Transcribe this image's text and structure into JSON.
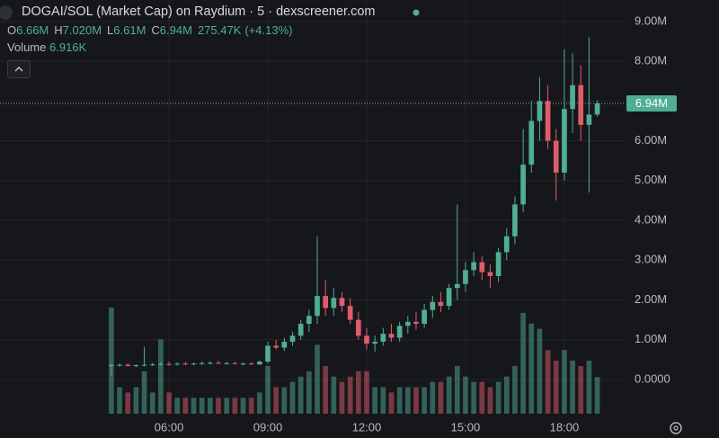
{
  "header": {
    "title": "DOGAI/SOL (Market Cap) on Raydium · 5 · dexscreener.com"
  },
  "chart_data": {
    "type": "candlestick",
    "x": [
      4.25,
      4.5,
      4.75,
      5,
      5.25,
      5.5,
      5.75,
      6,
      6.25,
      6.5,
      6.75,
      7,
      7.25,
      7.5,
      7.75,
      8,
      8.25,
      8.5,
      8.75,
      9,
      9.25,
      9.5,
      9.75,
      10,
      10.25,
      10.5,
      10.75,
      11,
      11.25,
      11.5,
      11.75,
      12,
      12.25,
      12.5,
      12.75,
      13,
      13.25,
      13.5,
      13.75,
      14,
      14.25,
      14.5,
      14.75,
      15,
      15.25,
      15.5,
      15.75,
      16,
      16.25,
      16.5,
      16.75,
      17,
      17.25,
      17.5,
      17.75,
      18,
      18.25,
      18.5,
      18.75,
      19
    ],
    "open": [
      0.35,
      0.36,
      0.37,
      0.34,
      0.36,
      0.37,
      0.38,
      0.39,
      0.38,
      0.4,
      0.39,
      0.4,
      0.41,
      0.42,
      0.4,
      0.41,
      0.39,
      0.4,
      0.38,
      0.45,
      0.85,
      0.8,
      0.95,
      1.1,
      1.4,
      1.6,
      2.1,
      1.8,
      2.05,
      1.85,
      1.5,
      1.1,
      0.9,
      0.95,
      1.15,
      1.05,
      1.35,
      1.45,
      1.4,
      1.75,
      1.95,
      1.85,
      2.3,
      2.4,
      2.75,
      2.95,
      2.7,
      2.6,
      3.2,
      3.6,
      4.4,
      5.4,
      6.5,
      7,
      6,
      5.2,
      6.8,
      7.4,
      6.4,
      6.66
    ],
    "high": [
      0.4,
      0.4,
      0.41,
      0.38,
      0.82,
      0.42,
      0.44,
      0.45,
      0.43,
      0.44,
      0.43,
      0.45,
      0.46,
      0.47,
      0.44,
      0.45,
      0.43,
      0.44,
      0.48,
      0.95,
      1,
      1.05,
      1.2,
      1.5,
      1.75,
      3.6,
      2.5,
      2.3,
      2.2,
      2.05,
      1.7,
      1.3,
      1.1,
      1.3,
      1.4,
      1.45,
      1.6,
      1.7,
      1.9,
      2.1,
      2.2,
      2.4,
      4.4,
      2.95,
      3.2,
      3.1,
      2.9,
      3.3,
      3.8,
      4.6,
      6.3,
      7,
      7.6,
      7.4,
      6.3,
      8.3,
      8.2,
      7.9,
      8.6,
      7.02
    ],
    "low": [
      0.1,
      0.32,
      0.33,
      0.31,
      0.33,
      0.34,
      0.35,
      0.35,
      0.35,
      0.36,
      0.36,
      0.37,
      0.38,
      0.39,
      0.37,
      0.38,
      0.36,
      0.37,
      0.36,
      0.4,
      0.75,
      0.72,
      0.85,
      1,
      1.2,
      1.4,
      1.6,
      1.6,
      1.7,
      1.4,
      1,
      0.75,
      0.7,
      0.85,
      0.95,
      0.95,
      1.15,
      1.25,
      1.3,
      1.55,
      1.7,
      1.75,
      2,
      2.2,
      2.6,
      2.5,
      2.3,
      2.45,
      3,
      3.4,
      4.2,
      5.2,
      6,
      5.8,
      4.5,
      5,
      6.2,
      6,
      4.7,
      6.61
    ],
    "close": [
      0.36,
      0.37,
      0.34,
      0.36,
      0.37,
      0.38,
      0.39,
      0.38,
      0.4,
      0.39,
      0.4,
      0.41,
      0.42,
      0.4,
      0.41,
      0.39,
      0.4,
      0.38,
      0.45,
      0.85,
      0.8,
      0.95,
      1.1,
      1.4,
      1.6,
      2.1,
      1.8,
      2.05,
      1.85,
      1.5,
      1.1,
      0.9,
      0.95,
      1.15,
      1.05,
      1.35,
      1.45,
      1.4,
      1.75,
      1.95,
      1.85,
      2.3,
      2.4,
      2.75,
      2.95,
      2.7,
      2.6,
      3.2,
      3.6,
      4.4,
      5.4,
      6.5,
      7,
      6,
      5.2,
      6.8,
      7.4,
      6.4,
      6.66,
      6.94
    ],
    "volume": [
      20,
      5,
      4,
      5,
      8,
      4,
      14,
      4,
      3,
      3,
      3,
      3,
      3,
      3,
      3,
      3,
      3,
      3,
      4,
      9,
      5,
      5,
      6,
      7,
      8,
      13,
      9,
      7,
      6,
      7,
      8,
      8,
      5,
      5,
      4,
      5,
      5,
      5,
      5,
      6,
      6,
      7,
      9,
      7,
      6,
      6,
      5,
      6,
      7,
      9,
      19,
      17,
      16,
      12,
      10,
      12,
      10,
      9,
      10,
      6.916
    ],
    "up_color": "#4fae95",
    "down_color": "#df5c6b",
    "xlim": [
      0.87,
      19.83
    ],
    "xticks": [
      {
        "value": 6,
        "label": "06:00"
      },
      {
        "value": 9,
        "label": "09:00"
      },
      {
        "value": 12,
        "label": "12:00"
      },
      {
        "value": 15,
        "label": "15:00"
      },
      {
        "value": 18,
        "label": "18:00"
      }
    ],
    "ylim": [
      -0.86,
      9.54
    ],
    "yticks": [
      {
        "value": 0,
        "label": "0.0000"
      },
      {
        "value": 1,
        "label": "1.00M"
      },
      {
        "value": 2,
        "label": "2.00M"
      },
      {
        "value": 3,
        "label": "3.00M"
      },
      {
        "value": 4,
        "label": "4.00M"
      },
      {
        "value": 5,
        "label": "5.00M"
      },
      {
        "value": 6,
        "label": "6.00M"
      },
      {
        "value": 7,
        "label": "7.00M"
      },
      {
        "value": 8,
        "label": "8.00M"
      },
      {
        "value": 9,
        "label": "9.00M"
      }
    ],
    "grid": true,
    "last_price": {
      "value": 6.94,
      "label": "6.94M"
    },
    "legend": [
      {
        "key": "O",
        "value": 6.66,
        "label": "6.66M"
      },
      {
        "key": "H",
        "value": 7.02,
        "label": "7.020M"
      },
      {
        "key": "L",
        "value": 6.61,
        "label": "6.61M"
      },
      {
        "key": "C",
        "value": 6.94,
        "label": "6.94M"
      }
    ],
    "change": {
      "value": 0.27547,
      "label": "275.47K"
    },
    "change_pct": {
      "value": 4.13,
      "label": "(+4.13%)"
    },
    "volume_title": "Volume",
    "volume_value": {
      "value": 6.916,
      "label": "6.916K"
    }
  }
}
